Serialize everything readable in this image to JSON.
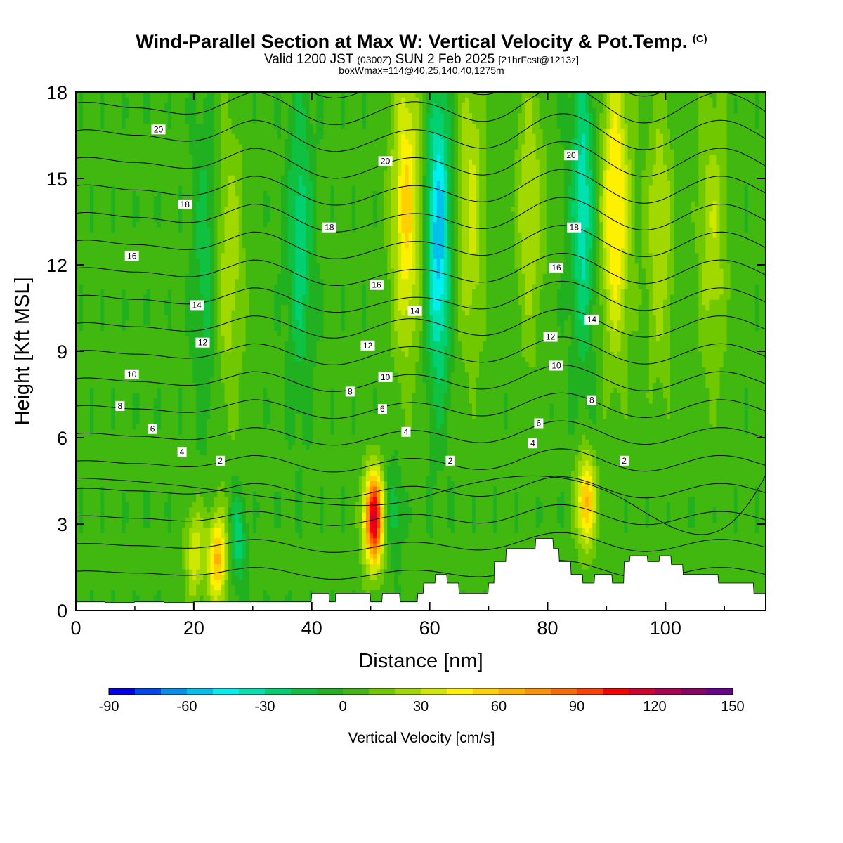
{
  "title": {
    "main": "Wind-Parallel Section at Max W: Vertical Velocity & Pot.Temp.",
    "mark": "(C)",
    "valid_prefix": "Valid 1200 JST",
    "valid_utc": "(0300Z)",
    "valid_date": "SUN 2 Feb 2025",
    "forecast": "[21hrFcst@1213z]",
    "boxmax": "boxWmax=114@40.25,140.40,1275m"
  },
  "chart_data": {
    "type": "heatmap",
    "xlabel": "Distance [nm]",
    "ylabel": "Height [Kft MSL]",
    "xlim": [
      0,
      117
    ],
    "ylim": [
      0,
      18
    ],
    "x_ticks": [
      "0",
      "20",
      "40",
      "60",
      "80",
      "100"
    ],
    "y_ticks": [
      "0",
      "3",
      "6",
      "9",
      "12",
      "15",
      "18"
    ],
    "colorbar": {
      "label": "Vertical Velocity [cm/s]",
      "ticks": [
        "-90",
        "-60",
        "-30",
        "0",
        "30",
        "60",
        "90",
        "120",
        "150"
      ],
      "range": [
        -90,
        150
      ],
      "step": 10,
      "colors": [
        "#0000f0",
        "#0048f0",
        "#0090f0",
        "#00c0f0",
        "#00f0f0",
        "#00e0b0",
        "#00d070",
        "#10c040",
        "#20b020",
        "#40b810",
        "#70c800",
        "#a0d800",
        "#d0e800",
        "#fff000",
        "#ffd000",
        "#ffb000",
        "#ff9000",
        "#ff6a00",
        "#ff4000",
        "#ff0000",
        "#d8002c",
        "#b00050",
        "#8c0068",
        "#6a0090"
      ]
    },
    "updrafts": [
      {
        "x": 20.2,
        "z": 2.0,
        "w": 35
      },
      {
        "x": 24.0,
        "z": 1.8,
        "w": 60
      },
      {
        "x": 50.5,
        "z": 3.2,
        "w": 114
      },
      {
        "x": 86.5,
        "z": 3.8,
        "w": 60
      },
      {
        "x": 56.0,
        "z": 14.0,
        "w": 50
      },
      {
        "x": 67.0,
        "z": 14.0,
        "w": 30
      },
      {
        "x": 91.5,
        "z": 14.0,
        "w": 50
      },
      {
        "x": 99.0,
        "z": 13.0,
        "w": 25
      },
      {
        "x": 108.0,
        "z": 13.0,
        "w": 25
      },
      {
        "x": 26.0,
        "z": 12.0,
        "w": 25
      },
      {
        "x": 77.0,
        "z": 14.0,
        "w": 25
      }
    ],
    "downdrafts": [
      {
        "x": 61.5,
        "z": 13.0,
        "w": -60
      },
      {
        "x": 86.0,
        "z": 14.0,
        "w": -40
      },
      {
        "x": 38.0,
        "z": 13.0,
        "w": -30
      },
      {
        "x": 22.0,
        "z": 12.0,
        "w": -20
      },
      {
        "x": 27.5,
        "z": 2.5,
        "w": -30
      },
      {
        "x": 54.0,
        "z": 3.5,
        "w": -20
      }
    ],
    "theta_label": "Pot.Temp.",
    "theta_contour_labels": [
      {
        "value": "20",
        "x": 14,
        "z": 16.7
      },
      {
        "value": "20",
        "x": 52.5,
        "z": 15.6
      },
      {
        "value": "20",
        "x": 84,
        "z": 15.8
      },
      {
        "value": "18",
        "x": 18.5,
        "z": 14.1
      },
      {
        "value": "18",
        "x": 43,
        "z": 13.3
      },
      {
        "value": "18",
        "x": 84.5,
        "z": 13.3
      },
      {
        "value": "16",
        "x": 9.5,
        "z": 12.3
      },
      {
        "value": "16",
        "x": 51,
        "z": 11.3
      },
      {
        "value": "16",
        "x": 81.5,
        "z": 11.9
      },
      {
        "value": "14",
        "x": 20.5,
        "z": 10.6
      },
      {
        "value": "14",
        "x": 57.5,
        "z": 10.4
      },
      {
        "value": "14",
        "x": 87.5,
        "z": 10.1
      },
      {
        "value": "12",
        "x": 21.5,
        "z": 9.3
      },
      {
        "value": "12",
        "x": 49.5,
        "z": 9.2
      },
      {
        "value": "12",
        "x": 80.5,
        "z": 9.5
      },
      {
        "value": "10",
        "x": 9.5,
        "z": 8.2
      },
      {
        "value": "10",
        "x": 52.5,
        "z": 8.1
      },
      {
        "value": "10",
        "x": 81.5,
        "z": 8.5
      },
      {
        "value": "8",
        "x": 7.5,
        "z": 7.1
      },
      {
        "value": "8",
        "x": 46.5,
        "z": 7.6
      },
      {
        "value": "8",
        "x": 87.5,
        "z": 7.3
      },
      {
        "value": "6",
        "x": 13,
        "z": 6.3
      },
      {
        "value": "6",
        "x": 52,
        "z": 7.0
      },
      {
        "value": "6",
        "x": 78.5,
        "z": 6.5
      },
      {
        "value": "4",
        "x": 18,
        "z": 5.5
      },
      {
        "value": "4",
        "x": 56,
        "z": 6.2
      },
      {
        "value": "4",
        "x": 77.5,
        "z": 5.8
      },
      {
        "value": "2",
        "x": 24.5,
        "z": 5.2
      },
      {
        "value": "2",
        "x": 63.5,
        "z": 5.2
      },
      {
        "value": "2",
        "x": 93,
        "z": 5.2
      }
    ],
    "terrain": [
      [
        0,
        0.3
      ],
      [
        4.9,
        0.3
      ],
      [
        5,
        0.28
      ],
      [
        9.9,
        0.28
      ],
      [
        10,
        0.3
      ],
      [
        14.9,
        0.3
      ],
      [
        15,
        0.28
      ],
      [
        19.9,
        0.28
      ],
      [
        20,
        0.3
      ],
      [
        39.9,
        0.3
      ],
      [
        40,
        0.6
      ],
      [
        42.9,
        0.6
      ],
      [
        43,
        0.3
      ],
      [
        44,
        0.3
      ],
      [
        44.1,
        0.6
      ],
      [
        49.9,
        0.6
      ],
      [
        50,
        0.3
      ],
      [
        51.9,
        0.3
      ],
      [
        52,
        0.6
      ],
      [
        54.9,
        0.6
      ],
      [
        55,
        0.3
      ],
      [
        57.9,
        0.3
      ],
      [
        58,
        0.6
      ],
      [
        58.9,
        0.6
      ],
      [
        59,
        0.95
      ],
      [
        60.9,
        0.95
      ],
      [
        61,
        1.25
      ],
      [
        62.9,
        1.25
      ],
      [
        63,
        0.95
      ],
      [
        64.9,
        0.95
      ],
      [
        65,
        0.6
      ],
      [
        69.9,
        0.6
      ],
      [
        70,
        0.95
      ],
      [
        70.9,
        0.95
      ],
      [
        71,
        1.7
      ],
      [
        72.9,
        1.7
      ],
      [
        73,
        2.15
      ],
      [
        77.9,
        2.15
      ],
      [
        78,
        2.5
      ],
      [
        80.9,
        2.5
      ],
      [
        81,
        2.15
      ],
      [
        81.9,
        2.15
      ],
      [
        82,
        1.7
      ],
      [
        83.9,
        1.7
      ],
      [
        84,
        1.25
      ],
      [
        85.9,
        1.25
      ],
      [
        86,
        0.95
      ],
      [
        87.9,
        0.95
      ],
      [
        88,
        1.25
      ],
      [
        90.9,
        1.25
      ],
      [
        91,
        0.95
      ],
      [
        92.9,
        0.95
      ],
      [
        93,
        1.7
      ],
      [
        93.9,
        1.7
      ],
      [
        94,
        1.9
      ],
      [
        96.9,
        1.9
      ],
      [
        97,
        1.7
      ],
      [
        98.9,
        1.7
      ],
      [
        99,
        1.9
      ],
      [
        100.9,
        1.9
      ],
      [
        101,
        1.6
      ],
      [
        102.9,
        1.6
      ],
      [
        103,
        1.25
      ],
      [
        108.9,
        1.25
      ],
      [
        109,
        0.95
      ],
      [
        114.9,
        0.95
      ],
      [
        115,
        0.6
      ],
      [
        117,
        0.6
      ]
    ]
  }
}
